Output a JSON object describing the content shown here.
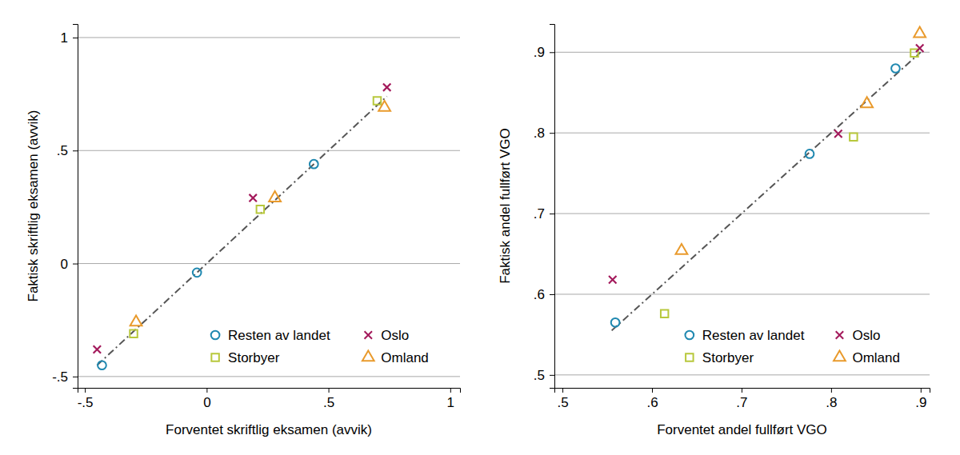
{
  "chart_data": [
    {
      "type": "scatter",
      "x_label": "Forventet skriftlig eksamen (avvik)",
      "y_label": "Faktisk skriftlig eksamen (avvik)",
      "xlim": [
        -0.53,
        1.04
      ],
      "ylim": [
        -0.55,
        1.06
      ],
      "xticks": [
        {
          "value": -0.5,
          "label": "-.5"
        },
        0,
        {
          "value": 0.5,
          "label": ".5"
        },
        1
      ],
      "yticks": [
        {
          "value": -0.5,
          "label": "-.5"
        },
        0,
        {
          "value": 0.5,
          "label": ".5"
        },
        1
      ],
      "grid": true,
      "legend": "lower right",
      "series": [
        {
          "name": "Resten av landet",
          "color": "#1f88b0",
          "marker": "circle",
          "x": [
            -0.43,
            -0.04,
            0.44
          ],
          "values": [
            -0.45,
            -0.04,
            0.44
          ]
        },
        {
          "name": "Storbyer",
          "color": "#b8c83c",
          "marker": "square",
          "x": [
            -0.3,
            0.22,
            0.7
          ],
          "values": [
            -0.31,
            0.24,
            0.72
          ]
        },
        {
          "name": "Oslo",
          "color": "#a3195b",
          "marker": "x",
          "x": [
            -0.45,
            0.19,
            0.74
          ],
          "values": [
            -0.38,
            0.29,
            0.78
          ]
        },
        {
          "name": "Omland",
          "color": "#e99a2c",
          "marker": "triangle",
          "x": [
            -0.29,
            0.28,
            0.73
          ],
          "values": [
            -0.26,
            0.29,
            0.69
          ]
        },
        {
          "type": "line",
          "line_style": "dashdot",
          "color": "#555555",
          "x": [
            -0.45,
            0.74
          ],
          "values": [
            -0.45,
            0.74
          ]
        }
      ]
    },
    {
      "type": "scatter",
      "x_label": "Forventet andel fullført VGO",
      "y_label": "Faktisk andel fullført VGO",
      "xlim": [
        0.491,
        0.91
      ],
      "ylim": [
        0.484,
        0.935
      ],
      "xticks": [
        {
          "value": 0.5,
          "label": ".5"
        },
        {
          "value": 0.6,
          "label": ".6"
        },
        {
          "value": 0.7,
          "label": ".7"
        },
        {
          "value": 0.8,
          "label": ".8"
        },
        {
          "value": 0.9,
          "label": ".9"
        }
      ],
      "yticks": [
        {
          "value": 0.5,
          "label": ".5"
        },
        {
          "value": 0.6,
          "label": ".6"
        },
        {
          "value": 0.7,
          "label": ".7"
        },
        {
          "value": 0.8,
          "label": ".8"
        },
        {
          "value": 0.9,
          "label": ".9"
        }
      ],
      "grid": true,
      "legend": "lower right",
      "series": [
        {
          "name": "Resten av landet",
          "color": "#1f88b0",
          "marker": "circle",
          "x": [
            0.559,
            0.776,
            0.872
          ],
          "values": [
            0.565,
            0.774,
            0.88
          ]
        },
        {
          "name": "Storbyer",
          "color": "#b8c83c",
          "marker": "square",
          "x": [
            0.614,
            0.825,
            0.893
          ],
          "values": [
            0.576,
            0.795,
            0.899
          ]
        },
        {
          "name": "Oslo",
          "color": "#a3195b",
          "marker": "x",
          "x": [
            0.556,
            0.808,
            0.899
          ],
          "values": [
            0.618,
            0.799,
            0.905
          ]
        },
        {
          "name": "Omland",
          "color": "#e99a2c",
          "marker": "triangle",
          "x": [
            0.633,
            0.84,
            0.899
          ],
          "values": [
            0.654,
            0.836,
            0.923
          ]
        },
        {
          "type": "line",
          "line_style": "dashdot",
          "color": "#555555",
          "x": [
            0.555,
            0.9
          ],
          "values": [
            0.555,
            0.9
          ]
        }
      ]
    }
  ]
}
